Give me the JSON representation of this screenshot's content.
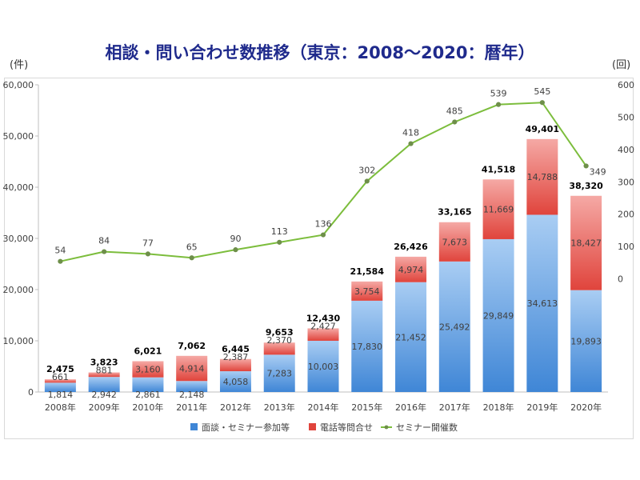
{
  "chart_data": {
    "type": "bar",
    "title": "相談・問い合わせ数推移（東京：2008～2020：暦年）",
    "ylabel": "(件)",
    "ylabel_right": "(回)",
    "categories": [
      "2008年",
      "2009年",
      "2010年",
      "2011年",
      "2012年",
      "2013年",
      "2014年",
      "2015年",
      "2016年",
      "2017年",
      "2018年",
      "2019年",
      "2020年"
    ],
    "stacked": true,
    "series": [
      {
        "name": "面談・セミナー参加等",
        "kind": "bar",
        "axis": "left",
        "color": "#5b9bd5",
        "values": [
          1814,
          2942,
          2861,
          2148,
          4058,
          7283,
          10003,
          17830,
          21452,
          25492,
          29849,
          34613,
          19893
        ]
      },
      {
        "name": "電話等問合せ",
        "kind": "bar",
        "axis": "left",
        "color": "#f08080",
        "values": [
          661,
          881,
          3160,
          4914,
          2387,
          2370,
          2427,
          3754,
          4974,
          7673,
          11669,
          14788,
          18427
        ]
      },
      {
        "name": "セミナー開催数",
        "kind": "line",
        "axis": "right",
        "color": "#7cbd3c",
        "values": [
          54,
          84,
          77,
          65,
          90,
          113,
          136,
          302,
          418,
          485,
          539,
          545,
          349
        ]
      }
    ],
    "totals": [
      "2,475",
      "3,823",
      "6,021",
      "7,062",
      "6,445",
      "9,653",
      "12,430",
      "21,584",
      "26,426",
      "33,165",
      "41,518",
      "49,401",
      "38,320"
    ],
    "ylim": [
      0,
      60000
    ],
    "yticks": [
      "0",
      "10,000",
      "20,000",
      "30,000",
      "40,000",
      "50,000",
      "60,000"
    ],
    "ylim_right": [
      -350,
      600
    ],
    "yticks_right": [
      "0",
      "100",
      "200",
      "300",
      "400",
      "500",
      "600"
    ],
    "legend_position": "bottom",
    "grid": false
  }
}
